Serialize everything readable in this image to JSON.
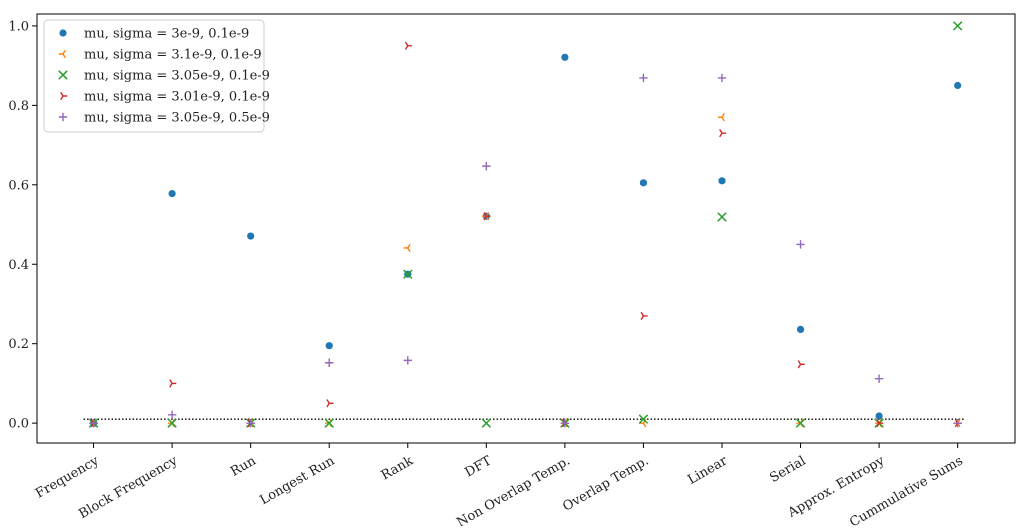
{
  "chart_data": {
    "type": "scatter",
    "title": "",
    "xlabel": "",
    "ylabel": "",
    "categories": [
      "Frequency",
      "Block Frequency",
      "Run",
      "Longest Run",
      "Rank",
      "DFT",
      "Non Overlap Temp.",
      "Overlap Temp.",
      "Linear",
      "Serial",
      "Approx. Entropy",
      "Cummulative Sums"
    ],
    "ylim": [
      -0.05,
      1.03
    ],
    "yticks": [
      "0.0",
      "0.2",
      "0.4",
      "0.6",
      "0.8",
      "1.0"
    ],
    "grid": false,
    "legend_position": "top-left",
    "reference_line": {
      "y": 0.01,
      "style": "dotted",
      "color": "#000000"
    },
    "series": [
      {
        "name": "mu, sigma = 3e-9, 0.1e-9",
        "marker": "circle",
        "color": "#1f77b4",
        "values": [
          0.0,
          0.578,
          0.471,
          0.195,
          0.375,
          0.521,
          0.921,
          0.605,
          0.61,
          0.236,
          0.018,
          0.85
        ]
      },
      {
        "name": "mu, sigma = 3.1e-9, 0.1e-9",
        "marker": "tri-left",
        "color": "#ff7f0e",
        "values": [
          0.0,
          0.0,
          0.0,
          0.0,
          0.441,
          0.521,
          0.0,
          0.0,
          0.77,
          0.0,
          0.0,
          0.0
        ]
      },
      {
        "name": "mu, sigma = 3.05e-9, 0.1e-9",
        "marker": "x",
        "color": "#2ca02c",
        "values": [
          0.0,
          0.0,
          0.0,
          0.0,
          0.375,
          0.0,
          0.0,
          0.01,
          0.519,
          0.0,
          0.0,
          1.0
        ]
      },
      {
        "name": "mu, sigma = 3.01e-9, 0.1e-9",
        "marker": "tri-right",
        "color": "#d62728",
        "values": [
          0.0,
          0.1,
          0.0,
          0.05,
          0.95,
          0.521,
          0.0,
          0.27,
          0.73,
          0.148,
          0.0,
          0.0
        ]
      },
      {
        "name": "mu, sigma = 3.05e-9, 0.5e-9",
        "marker": "plus",
        "color": "#9467bd",
        "values": [
          0.0,
          0.021,
          0.0,
          0.152,
          0.158,
          0.647,
          0.0,
          0.869,
          0.869,
          0.45,
          0.112,
          0.0
        ]
      }
    ]
  }
}
